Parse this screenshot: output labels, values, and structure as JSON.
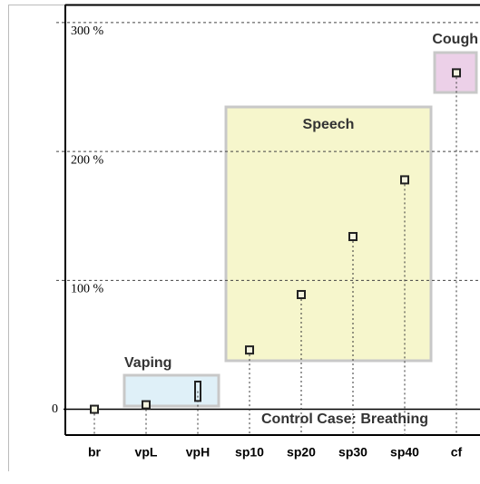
{
  "chart_data": {
    "type": "scatter",
    "categories": [
      "br",
      "vpL",
      "vpH",
      "sp10",
      "sp20",
      "sp30",
      "sp40",
      "cf"
    ],
    "values": [
      0,
      3.5,
      14,
      46,
      89,
      134,
      178,
      261
    ],
    "errors": [
      null,
      null,
      7.5,
      null,
      null,
      null,
      null,
      null
    ],
    "color": "#222222",
    "ylim": [
      -20,
      314
    ],
    "yticks": [
      0,
      {
        "value": 100,
        "label": "100 %"
      },
      {
        "value": 200,
        "label": "200 %"
      },
      {
        "value": 300,
        "label": "300 %"
      }
    ],
    "grid": true,
    "annotations": [
      {
        "text": "Control Case: Breathing"
      },
      {
        "text": "Vaping",
        "color": "#dff0f8"
      },
      {
        "text": "Speech",
        "color": "#f6f6cc"
      },
      {
        "text": "Cough",
        "color": "#ecd0e8"
      }
    ]
  }
}
